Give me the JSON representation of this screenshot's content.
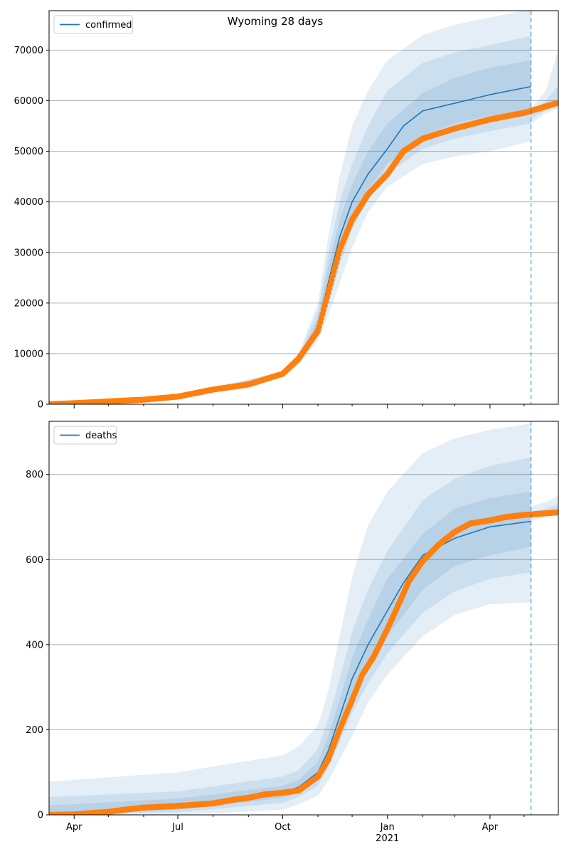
{
  "chart_data": [
    {
      "type": "line",
      "title": "Wyoming 28 days",
      "legend": {
        "entries": [
          "confirmed"
        ],
        "placement": "top-left"
      },
      "grid": {
        "y": true,
        "x": false
      },
      "x_range": [
        "2020-03-10",
        "2021-05-31"
      ],
      "ylim": [
        0,
        77800
      ],
      "y_ticks": [
        0,
        10000,
        20000,
        30000,
        40000,
        50000,
        60000,
        70000
      ],
      "forecast_start": "2021-05-07",
      "series": [
        {
          "name": "confirmed",
          "style": "line",
          "color": "#1f77b4",
          "points": [
            [
              "2020-03-10",
              10
            ],
            [
              "2020-04-01",
              200
            ],
            [
              "2020-05-01",
              500
            ],
            [
              "2020-06-01",
              850
            ],
            [
              "2020-07-01",
              1500
            ],
            [
              "2020-08-01",
              2800
            ],
            [
              "2020-09-01",
              3800
            ],
            [
              "2020-10-01",
              5800
            ],
            [
              "2020-10-15",
              8500
            ],
            [
              "2020-11-01",
              15500
            ],
            [
              "2020-11-10",
              24000
            ],
            [
              "2020-11-20",
              33000
            ],
            [
              "2020-12-01",
              40000
            ],
            [
              "2020-12-15",
              45500
            ],
            [
              "2021-01-01",
              50500
            ],
            [
              "2021-01-15",
              55000
            ],
            [
              "2021-02-01",
              58000
            ],
            [
              "2021-03-01",
              59500
            ],
            [
              "2021-04-01",
              61200
            ],
            [
              "2021-05-07",
              62800
            ]
          ]
        },
        {
          "name": "observed",
          "style": "markers",
          "color": "#ff7f0e",
          "points": [
            [
              "2020-03-10",
              10
            ],
            [
              "2020-04-01",
              200
            ],
            [
              "2020-05-01",
              550
            ],
            [
              "2020-06-01",
              900
            ],
            [
              "2020-07-01",
              1500
            ],
            [
              "2020-08-01",
              2900
            ],
            [
              "2020-09-01",
              3900
            ],
            [
              "2020-10-01",
              6000
            ],
            [
              "2020-10-15",
              9000
            ],
            [
              "2020-11-01",
              14500
            ],
            [
              "2020-11-10",
              22000
            ],
            [
              "2020-11-20",
              30500
            ],
            [
              "2020-12-01",
              36500
            ],
            [
              "2020-12-15",
              41500
            ],
            [
              "2021-01-01",
              45500
            ],
            [
              "2021-01-15",
              50000
            ],
            [
              "2021-02-01",
              52500
            ],
            [
              "2021-03-01",
              54500
            ],
            [
              "2021-04-01",
              56300
            ],
            [
              "2021-05-01",
              57600
            ],
            [
              "2021-05-31",
              59600
            ]
          ]
        }
      ],
      "bands": [
        {
          "dates": [
            "2020-03-10",
            "2020-07-01",
            "2020-10-01",
            "2020-10-15",
            "2020-11-01",
            "2020-11-10",
            "2020-11-20",
            "2020-12-01",
            "2020-12-15",
            "2021-01-01",
            "2021-02-01",
            "2021-03-01",
            "2021-04-01",
            "2021-05-07"
          ],
          "low": [
            0,
            1300,
            5300,
            7800,
            12500,
            17500,
            24000,
            31000,
            38000,
            43000,
            47500,
            49000,
            50000,
            52000
          ],
          "high": [
            20,
            1700,
            6500,
            10000,
            20000,
            33000,
            45000,
            55000,
            62000,
            68000,
            73000,
            75000,
            76500,
            78000
          ]
        },
        {
          "dates": [
            "2020-03-10",
            "2020-07-01",
            "2020-10-01",
            "2020-10-15",
            "2020-11-01",
            "2020-11-10",
            "2020-11-20",
            "2020-12-01",
            "2020-12-15",
            "2021-01-01",
            "2021-02-01",
            "2021-03-01",
            "2021-04-01",
            "2021-05-07"
          ],
          "low": [
            0,
            1350,
            5450,
            8000,
            13500,
            19500,
            27500,
            34500,
            40500,
            45500,
            50500,
            52500,
            54000,
            55500
          ],
          "high": [
            18,
            1650,
            6300,
            9500,
            18500,
            29500,
            40000,
            47500,
            55000,
            62000,
            67500,
            69500,
            71000,
            72800
          ]
        },
        {
          "dates": [
            "2020-03-10",
            "2020-07-01",
            "2020-10-01",
            "2020-10-15",
            "2020-11-01",
            "2020-11-10",
            "2020-11-20",
            "2020-12-01",
            "2020-12-15",
            "2021-01-01",
            "2021-02-01",
            "2021-03-01",
            "2021-04-01",
            "2021-05-07"
          ],
          "low": [
            0,
            1420,
            5600,
            8200,
            14500,
            21500,
            30000,
            37000,
            42500,
            47500,
            53000,
            55500,
            57000,
            58000
          ],
          "high": [
            15,
            1580,
            6100,
            9000,
            17000,
            27000,
            36500,
            43500,
            50000,
            55500,
            61500,
            64500,
            66500,
            68000
          ]
        }
      ],
      "post_bands": [
        {
          "dates": [
            "2021-05-07",
            "2021-05-20",
            "2021-05-31"
          ],
          "low": [
            55500,
            57500,
            58500
          ],
          "high": [
            58500,
            62000,
            70000
          ]
        },
        {
          "dates": [
            "2021-05-07",
            "2021-05-20",
            "2021-05-31"
          ],
          "low": [
            56500,
            58000,
            59000
          ],
          "high": [
            58000,
            60000,
            63000
          ]
        }
      ]
    },
    {
      "type": "line",
      "title": "",
      "legend": {
        "entries": [
          "deaths"
        ],
        "placement": "top-left"
      },
      "grid": {
        "y": true,
        "x": false
      },
      "x_range": [
        "2020-03-10",
        "2021-05-31"
      ],
      "ylim": [
        0,
        925
      ],
      "y_ticks": [
        0,
        200,
        400,
        600,
        800
      ],
      "x_ticks": [
        {
          "date": "2020-04-01",
          "label": "Apr"
        },
        {
          "date": "2020-07-01",
          "label": "Jul"
        },
        {
          "date": "2020-10-01",
          "label": "Oct"
        },
        {
          "date": "2021-01-01",
          "label": "Jan"
        },
        {
          "date": "2021-04-01",
          "label": "Apr"
        }
      ],
      "x_minor_ticks": [
        "2020-05-01",
        "2020-06-01",
        "2020-08-01",
        "2020-09-01",
        "2020-11-01",
        "2020-12-01",
        "2021-02-01",
        "2021-03-01",
        "2021-05-01"
      ],
      "x_year_label": "2021",
      "forecast_start": "2021-05-07",
      "series": [
        {
          "name": "deaths",
          "style": "line",
          "color": "#1f77b4",
          "points": [
            [
              "2020-03-10",
              0
            ],
            [
              "2020-04-01",
              2
            ],
            [
              "2020-05-01",
              8
            ],
            [
              "2020-06-01",
              18
            ],
            [
              "2020-07-01",
              22
            ],
            [
              "2020-08-01",
              28
            ],
            [
              "2020-09-01",
              40
            ],
            [
              "2020-10-01",
              52
            ],
            [
              "2020-10-15",
              65
            ],
            [
              "2020-11-01",
              100
            ],
            [
              "2020-11-10",
              150
            ],
            [
              "2020-11-20",
              230
            ],
            [
              "2020-12-01",
              320
            ],
            [
              "2020-12-15",
              400
            ],
            [
              "2021-01-01",
              480
            ],
            [
              "2021-01-15",
              545
            ],
            [
              "2021-02-01",
              610
            ],
            [
              "2021-03-01",
              650
            ],
            [
              "2021-04-01",
              677
            ],
            [
              "2021-05-07",
              690
            ]
          ]
        },
        {
          "name": "observed",
          "style": "markers",
          "color": "#ff7f0e",
          "points": [
            [
              "2020-03-10",
              0
            ],
            [
              "2020-04-01",
              1
            ],
            [
              "2020-04-15",
              4
            ],
            [
              "2020-05-01",
              7
            ],
            [
              "2020-05-15",
              12
            ],
            [
              "2020-06-01",
              17
            ],
            [
              "2020-07-01",
              21
            ],
            [
              "2020-08-01",
              27
            ],
            [
              "2020-08-20",
              36
            ],
            [
              "2020-09-01",
              40
            ],
            [
              "2020-09-15",
              48
            ],
            [
              "2020-10-01",
              52
            ],
            [
              "2020-10-15",
              57
            ],
            [
              "2020-11-01",
              90
            ],
            [
              "2020-11-10",
              130
            ],
            [
              "2020-11-20",
              200
            ],
            [
              "2020-12-01",
              270
            ],
            [
              "2020-12-10",
              330
            ],
            [
              "2020-12-20",
              372
            ],
            [
              "2021-01-01",
              437
            ],
            [
              "2021-01-10",
              490
            ],
            [
              "2021-01-20",
              550
            ],
            [
              "2021-02-01",
              597
            ],
            [
              "2021-02-15",
              635
            ],
            [
              "2021-03-01",
              665
            ],
            [
              "2021-03-15",
              685
            ],
            [
              "2021-04-01",
              692
            ],
            [
              "2021-04-15",
              700
            ],
            [
              "2021-05-01",
              705
            ],
            [
              "2021-05-31",
              711
            ]
          ]
        }
      ],
      "bands": [
        {
          "dates": [
            "2020-03-10",
            "2020-07-01",
            "2020-10-01",
            "2020-10-15",
            "2020-11-01",
            "2020-11-10",
            "2020-11-20",
            "2020-12-01",
            "2020-12-15",
            "2021-01-01",
            "2021-02-01",
            "2021-03-01",
            "2021-04-01",
            "2021-05-07"
          ],
          "low": [
            0,
            0,
            12,
            25,
            45,
            80,
            130,
            185,
            265,
            330,
            420,
            470,
            495,
            500
          ],
          "high": [
            78,
            100,
            140,
            160,
            210,
            290,
            420,
            560,
            680,
            760,
            850,
            885,
            905,
            920
          ]
        },
        {
          "dates": [
            "2020-03-10",
            "2020-07-01",
            "2020-10-01",
            "2020-10-15",
            "2020-11-01",
            "2020-11-10",
            "2020-11-20",
            "2020-12-01",
            "2020-12-15",
            "2021-01-01",
            "2021-02-01",
            "2021-03-01",
            "2021-04-01",
            "2021-05-07"
          ],
          "low": [
            0,
            6,
            28,
            42,
            68,
            110,
            170,
            240,
            310,
            380,
            475,
            525,
            555,
            570
          ],
          "high": [
            42,
            55,
            90,
            105,
            155,
            225,
            320,
            430,
            530,
            620,
            740,
            790,
            820,
            840
          ]
        },
        {
          "dates": [
            "2020-03-10",
            "2020-07-01",
            "2020-10-01",
            "2020-10-15",
            "2020-11-01",
            "2020-11-10",
            "2020-11-20",
            "2020-12-01",
            "2020-12-15",
            "2021-01-01",
            "2021-02-01",
            "2021-03-01",
            "2021-04-01",
            "2021-05-07"
          ],
          "low": [
            0,
            12,
            40,
            52,
            82,
            130,
            200,
            280,
            350,
            420,
            530,
            585,
            610,
            630
          ],
          "high": [
            22,
            38,
            68,
            82,
            125,
            185,
            270,
            370,
            460,
            555,
            660,
            720,
            745,
            760
          ]
        }
      ],
      "post_bands": [
        {
          "dates": [
            "2021-05-07",
            "2021-05-20",
            "2021-05-31"
          ],
          "low": [
            690,
            700,
            705
          ],
          "high": [
            725,
            735,
            750
          ]
        },
        {
          "dates": [
            "2021-05-07",
            "2021-05-20",
            "2021-05-31"
          ],
          "low": [
            700,
            705,
            708
          ],
          "high": [
            712,
            720,
            730
          ]
        }
      ]
    }
  ],
  "colors": {
    "line": "#1f77b4",
    "markers": "#ff7f0e",
    "band": "#1f77b4",
    "grid": "#b0b0b0",
    "forecast_line": "#1f77b4"
  }
}
